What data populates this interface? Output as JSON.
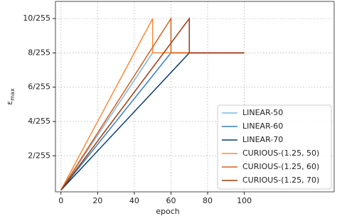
{
  "chart_data": {
    "type": "line",
    "xlabel": "epoch",
    "ylabel": {
      "symbol": "ε",
      "subscript": "max"
    },
    "xlim": [
      -3,
      149
    ],
    "ylim": [
      -0.1,
      11
    ],
    "xticks": [
      0,
      20,
      40,
      60,
      80,
      100
    ],
    "yticks": [
      {
        "value": 2,
        "label": "2/255"
      },
      {
        "value": 4,
        "label": "4/255"
      },
      {
        "value": 6,
        "label": "6/255"
      },
      {
        "value": 8,
        "label": "8/255"
      },
      {
        "value": 10,
        "label": "10/255"
      }
    ],
    "grid": true,
    "legend": "lower right",
    "series": [
      {
        "name": "LINEAR-50",
        "color": "#7fb8da",
        "x": [
          0,
          50,
          100
        ],
        "values": [
          0,
          8,
          8
        ]
      },
      {
        "name": "LINEAR-60",
        "color": "#3a7fb8",
        "x": [
          0,
          60,
          100
        ],
        "values": [
          0,
          8,
          8
        ]
      },
      {
        "name": "LINEAR-70",
        "color": "#0d3d72",
        "x": [
          0,
          70,
          100
        ],
        "values": [
          0,
          8,
          8
        ]
      },
      {
        "name": "CURIOUS-(1.25, 50)",
        "color": "#f58b3c",
        "x": [
          0,
          50,
          50,
          100
        ],
        "values": [
          0,
          10,
          8,
          8
        ]
      },
      {
        "name": "CURIOUS-(1.25, 60)",
        "color": "#d2601a",
        "x": [
          0,
          60,
          60,
          100
        ],
        "values": [
          0,
          10,
          8,
          8
        ]
      },
      {
        "name": "CURIOUS-(1.25, 70)",
        "color": "#983c13",
        "x": [
          0,
          70,
          70,
          100
        ],
        "values": [
          0,
          10,
          8,
          8
        ]
      }
    ]
  }
}
